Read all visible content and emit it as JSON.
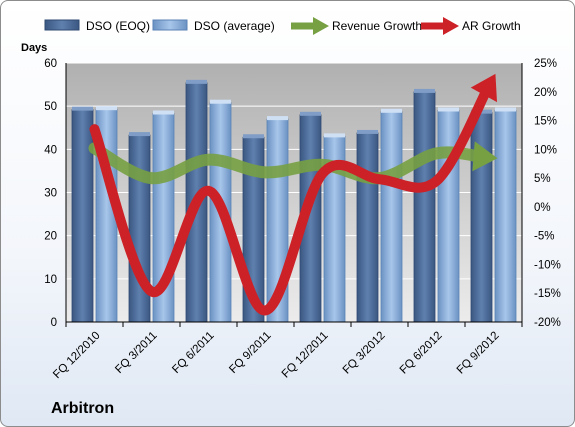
{
  "company": "Arbitron",
  "chart_data": {
    "type": "bar",
    "title": "Arbitron",
    "categories": [
      "FQ 12/2010",
      "FQ 3/2011",
      "FQ 6/2011",
      "FQ 9/2011",
      "FQ 12/2011",
      "FQ 3/2012",
      "FQ 6/2012",
      "FQ 9/2012"
    ],
    "ylabel": "Days",
    "ylim": [
      0,
      60
    ],
    "yticks": [
      0,
      10,
      20,
      30,
      40,
      50,
      60
    ],
    "y2lim": [
      -20,
      25
    ],
    "y2ticks": [
      "-20%",
      "-15%",
      "-10%",
      "-5%",
      "0%",
      "5%",
      "10%",
      "15%",
      "20%",
      "25%"
    ],
    "grid": true,
    "legend": "top",
    "series": [
      {
        "name": "DSO (EOQ)",
        "kind": "bar",
        "axis": "left",
        "color": "#4f6e9b",
        "values": [
          49.2,
          43.3,
          55.4,
          42.8,
          48.0,
          43.8,
          53.3,
          48.5
        ]
      },
      {
        "name": "DSO (average)",
        "kind": "bar",
        "axis": "left",
        "color": "#88aedc",
        "values": [
          49.3,
          48.3,
          50.8,
          47.0,
          43.0,
          48.7,
          49.0,
          49.0
        ]
      },
      {
        "name": "Revenue Growth",
        "kind": "line",
        "axis": "right",
        "unit": "%",
        "color": "#77a043",
        "values": [
          10.2,
          5.0,
          8.2,
          6.0,
          7.3,
          5.0,
          9.3,
          8.5
        ]
      },
      {
        "name": "AR Growth",
        "kind": "line",
        "axis": "right",
        "unit": "%",
        "color": "#cc2127",
        "values": [
          13.5,
          -14.7,
          2.8,
          -18.0,
          5.8,
          4.8,
          4.5,
          22.5
        ]
      }
    ]
  }
}
